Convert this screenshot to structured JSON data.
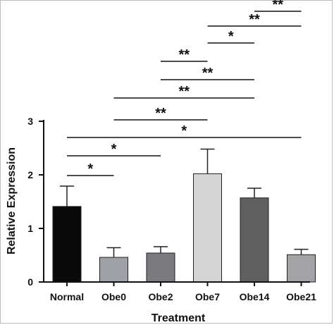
{
  "chart_data": {
    "type": "bar",
    "categories": [
      "Normal",
      "Obe0",
      "Obe2",
      "Obe7",
      "Obe14",
      "Obe21"
    ],
    "values": [
      1.41,
      0.46,
      0.54,
      2.02,
      1.57,
      0.51
    ],
    "errors": [
      0.38,
      0.18,
      0.12,
      0.46,
      0.18,
      0.1
    ],
    "bar_colors": [
      "#0a0a0a",
      "#a0a0a8",
      "#7b7b7f",
      "#d4d4d4",
      "#5f5f5f",
      "#a3a3a6"
    ],
    "title": "",
    "xlabel": "Treatment",
    "ylabel": "Relative Expression",
    "ylim": [
      0,
      3
    ],
    "yticks": [
      0,
      1,
      2,
      3
    ],
    "grid": false,
    "legend": "none",
    "significance": [
      {
        "from": "Normal",
        "to": "Obe0",
        "label": "*"
      },
      {
        "from": "Normal",
        "to": "Obe2",
        "label": "*"
      },
      {
        "from": "Normal",
        "to": "Obe21",
        "label": "*"
      },
      {
        "from": "Obe0",
        "to": "Obe7",
        "label": "**"
      },
      {
        "from": "Obe0",
        "to": "Obe14",
        "label": "**"
      },
      {
        "from": "Obe2",
        "to": "Obe7",
        "label": "**"
      },
      {
        "from": "Obe2",
        "to": "Obe14",
        "label": "**"
      },
      {
        "from": "Obe7",
        "to": "Obe14",
        "label": "*"
      },
      {
        "from": "Obe7",
        "to": "Obe21",
        "label": "**"
      },
      {
        "from": "Obe14",
        "to": "Obe21",
        "label": "**"
      }
    ]
  }
}
